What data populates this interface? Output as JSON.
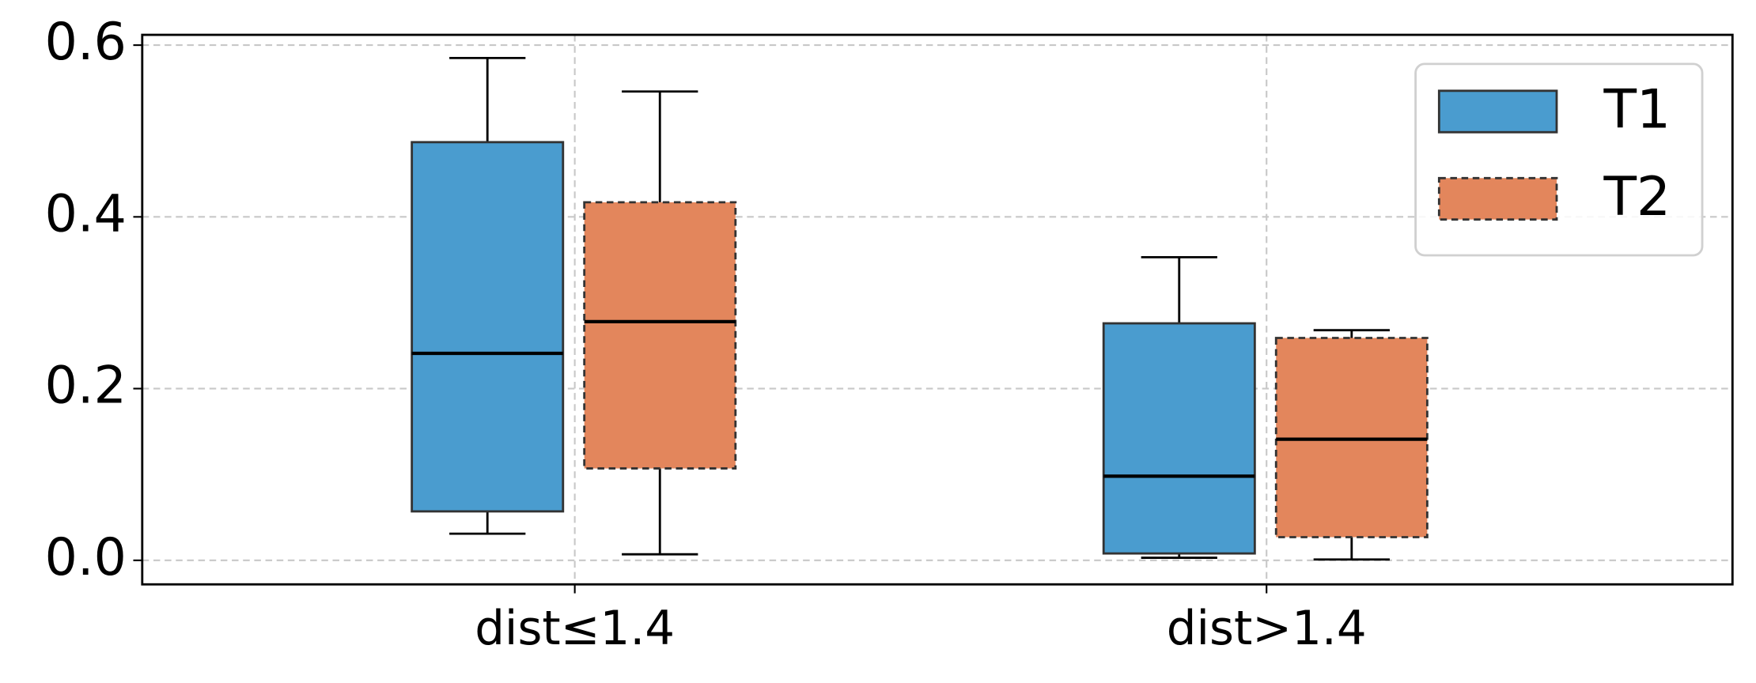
{
  "chart_data": {
    "type": "box",
    "categories": [
      "dist≤1.4",
      "dist>1.4"
    ],
    "series": [
      {
        "name": "T1",
        "color": "#4a9ccf",
        "linestyle": "solid",
        "whislo": [
          0.031,
          0.003
        ],
        "q1": [
          0.057,
          0.008
        ],
        "med": [
          0.241,
          0.098
        ],
        "q3": [
          0.487,
          0.276
        ],
        "whishi": [
          0.585,
          0.353
        ]
      },
      {
        "name": "T2",
        "color": "#e3865c",
        "linestyle": "dashed",
        "whislo": [
          0.007,
          0.001
        ],
        "q1": [
          0.107,
          0.027
        ],
        "med": [
          0.278,
          0.141
        ],
        "q3": [
          0.417,
          0.259
        ],
        "whishi": [
          0.546,
          0.268
        ]
      }
    ],
    "ylim": [
      -0.028,
      0.612
    ],
    "yticks": [
      {
        "value": 0,
        "label": "0.0"
      },
      0.2,
      0.4,
      0.6
    ],
    "grid": true,
    "legend": "upper right"
  }
}
